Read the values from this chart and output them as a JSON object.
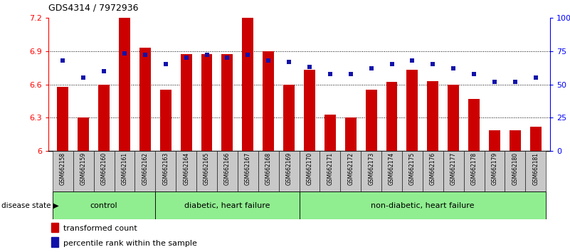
{
  "title": "GDS4314 / 7972936",
  "samples": [
    "GSM662158",
    "GSM662159",
    "GSM662160",
    "GSM662161",
    "GSM662162",
    "GSM662163",
    "GSM662164",
    "GSM662165",
    "GSM662166",
    "GSM662167",
    "GSM662168",
    "GSM662169",
    "GSM662170",
    "GSM662171",
    "GSM662172",
    "GSM662173",
    "GSM662174",
    "GSM662175",
    "GSM662176",
    "GSM662177",
    "GSM662178",
    "GSM662179",
    "GSM662180",
    "GSM662181"
  ],
  "bar_values": [
    6.58,
    6.3,
    6.6,
    7.2,
    6.93,
    6.55,
    6.87,
    6.87,
    6.87,
    7.2,
    6.9,
    6.6,
    6.73,
    6.33,
    6.3,
    6.55,
    6.62,
    6.73,
    6.63,
    6.6,
    6.47,
    6.19,
    6.19,
    6.22
  ],
  "percentile_values": [
    68,
    55,
    60,
    73,
    72,
    65,
    70,
    72,
    70,
    72,
    68,
    67,
    63,
    58,
    58,
    62,
    65,
    68,
    65,
    62,
    58,
    52,
    52,
    55
  ],
  "ylim_left": [
    6.0,
    7.2
  ],
  "ylim_right": [
    0,
    100
  ],
  "yticks_left": [
    6.0,
    6.3,
    6.6,
    6.9,
    7.2
  ],
  "ytick_labels_left": [
    "6",
    "6.3",
    "6.6",
    "6.9",
    "7.2"
  ],
  "yticks_right": [
    0,
    25,
    50,
    75,
    100
  ],
  "ytick_labels_right": [
    "0",
    "25",
    "50",
    "75",
    "100%"
  ],
  "bar_color": "#CC0000",
  "dot_color": "#1111AA",
  "group_ranges": [
    [
      0,
      4
    ],
    [
      5,
      11
    ],
    [
      12,
      23
    ]
  ],
  "group_labels": [
    "control",
    "diabetic, heart failure",
    "non-diabetic, heart failure"
  ],
  "group_colors": [
    "#90EE90",
    "#90EE90",
    "#90EE90"
  ],
  "sample_box_color": "#C8C8C8",
  "legend_bar_label": "transformed count",
  "legend_dot_label": "percentile rank within the sample",
  "disease_state_label": "disease state"
}
